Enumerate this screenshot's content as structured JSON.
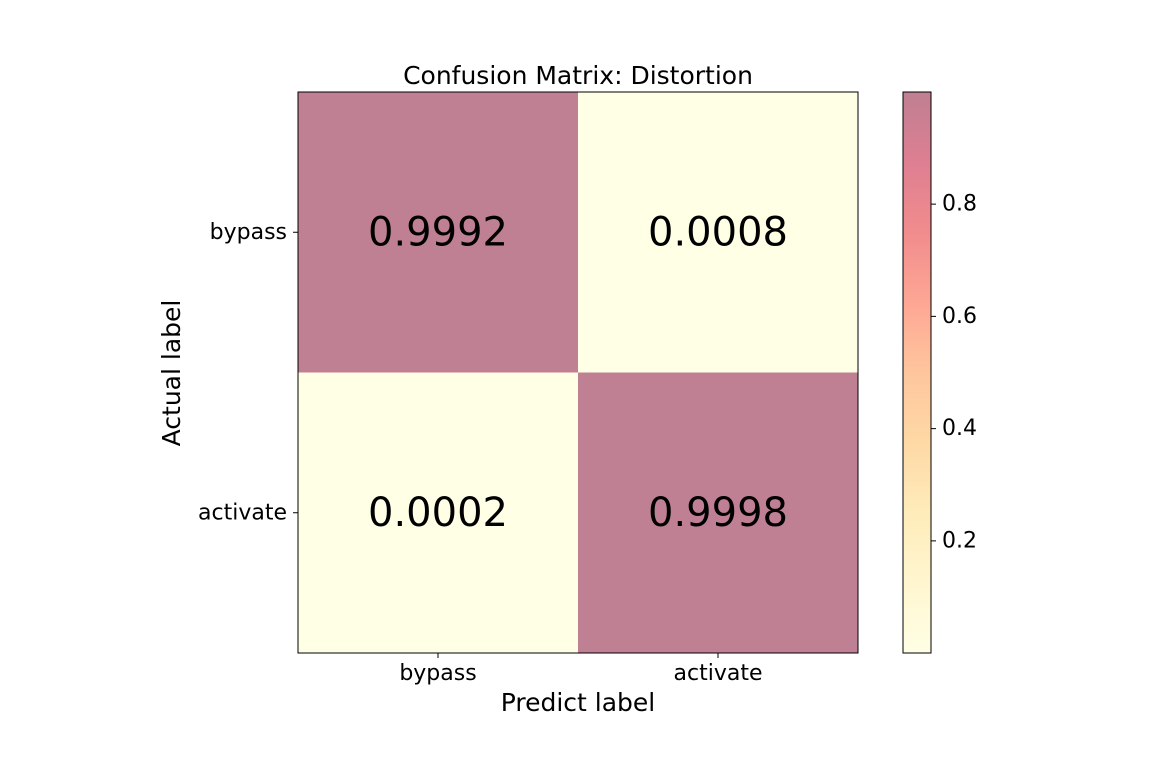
{
  "chart_data": {
    "type": "heatmap",
    "title": "Confusion Matrix: Distortion",
    "xlabel": "Predict label",
    "ylabel": "Actual label",
    "x_categories": [
      "bypass",
      "activate"
    ],
    "y_categories": [
      "bypass",
      "activate"
    ],
    "values": [
      [
        0.9992,
        0.0008
      ],
      [
        0.0002,
        0.9998
      ]
    ],
    "cell_labels": [
      [
        "0.9992",
        "0.0008"
      ],
      [
        "0.0002",
        "0.9998"
      ]
    ],
    "colorbar": {
      "colormap": "YlOrRd",
      "alpha": 0.5,
      "range": [
        0.0002,
        0.9998
      ],
      "ticks": [
        0.2,
        0.4,
        0.6,
        0.8
      ],
      "tick_labels": [
        "0.2",
        "0.4",
        "0.6",
        "0.8"
      ]
    },
    "grid": false
  }
}
